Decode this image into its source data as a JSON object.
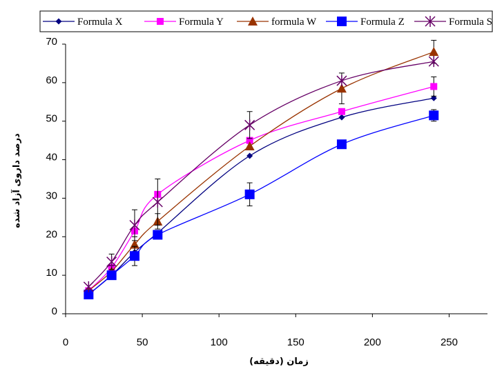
{
  "chart_data": {
    "type": "line",
    "title": "",
    "xlabel": "زمان (دقیقه)",
    "ylabel": "درصد داروی آزاد شده",
    "xlim": [
      0,
      275
    ],
    "ylim": [
      0,
      70
    ],
    "x_ticks": [
      0,
      50,
      100,
      150,
      200,
      250
    ],
    "y_ticks": [
      0,
      10,
      20,
      30,
      40,
      50,
      60,
      70
    ],
    "grid": false,
    "legend": "top",
    "x": [
      15,
      30,
      45,
      60,
      120,
      180,
      240
    ],
    "series": [
      {
        "name": "Formula X",
        "color": "#000080",
        "marker": "diamond",
        "values": [
          5,
          10,
          16,
          21,
          41,
          51,
          56
        ],
        "errors": [
          0,
          0,
          0,
          0,
          0,
          0,
          0
        ]
      },
      {
        "name": "Formula Y",
        "color": "#ff00ff",
        "marker": "square",
        "values": [
          6,
          12,
          21.5,
          31,
          45,
          52.5,
          59
        ],
        "errors": [
          0,
          0,
          0,
          0,
          0,
          0,
          2.5
        ]
      },
      {
        "name": "formula W",
        "color": "#993300",
        "marker": "triangle",
        "values": [
          6,
          11,
          18,
          24,
          43.5,
          58.5,
          68
        ],
        "errors": [
          0,
          1.5,
          2,
          2,
          0,
          4,
          3
        ]
      },
      {
        "name": "Formula Z",
        "color": "#0000ff",
        "marker": "square-large",
        "values": [
          5,
          10,
          15,
          20.5,
          31,
          44,
          51.5
        ],
        "errors": [
          0,
          0,
          2.5,
          0,
          3,
          0,
          1.5
        ]
      },
      {
        "name": "Formula S",
        "color": "#660066",
        "marker": "asterisk",
        "values": [
          7,
          13.5,
          23,
          29,
          49,
          60.5,
          65.5
        ],
        "errors": [
          0,
          2,
          4,
          6,
          3.5,
          0,
          0
        ]
      }
    ]
  }
}
